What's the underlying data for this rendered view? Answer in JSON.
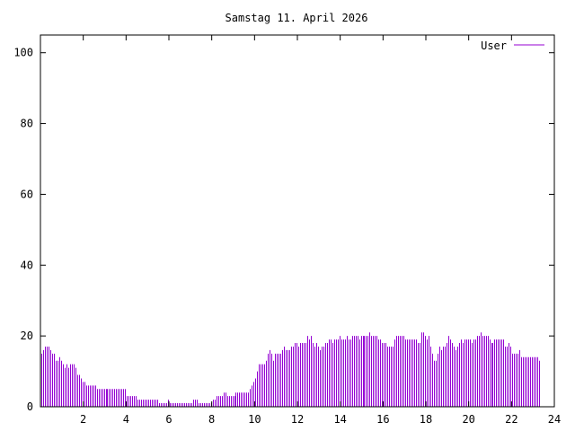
{
  "chart_data": {
    "type": "bar",
    "title": "Samstag 11. April 2026",
    "xlabel": "",
    "ylabel": "",
    "xlim": [
      0,
      24
    ],
    "ylim": [
      0,
      105
    ],
    "grid": false,
    "legend_position": "top-right",
    "x_ticks": [
      2,
      4,
      6,
      8,
      10,
      12,
      14,
      16,
      18,
      20,
      22,
      24
    ],
    "x_tick_labels": [
      "2",
      "4",
      "6",
      "8",
      "10",
      "12",
      "14",
      "16",
      "18",
      "20",
      "22",
      "24"
    ],
    "y_ticks": [
      0,
      20,
      40,
      60,
      80,
      100
    ],
    "y_tick_labels": [
      "0",
      "20",
      "40",
      "60",
      "80",
      "100"
    ],
    "interval_minutes": 5,
    "series": [
      {
        "name": "User",
        "color": "#9400d3",
        "values": [
          15,
          16,
          17,
          17,
          17,
          16,
          15,
          15,
          13,
          13,
          14,
          13,
          12,
          11,
          12,
          11,
          12,
          12,
          12,
          11,
          9,
          9,
          8,
          7,
          7,
          6,
          6,
          6,
          6,
          6,
          6,
          5,
          5,
          5,
          5,
          5,
          5,
          5,
          5,
          5,
          5,
          5,
          5,
          5,
          5,
          5,
          5,
          5,
          3,
          3,
          3,
          3,
          3,
          3,
          2,
          2,
          2,
          2,
          2,
          2,
          2,
          2,
          2,
          2,
          2,
          2,
          1,
          1,
          1,
          1,
          1,
          2,
          1,
          1,
          1,
          1,
          1,
          1,
          1,
          1,
          1,
          1,
          1,
          1,
          1,
          2,
          2,
          2,
          1,
          1,
          1,
          1,
          1,
          1,
          1,
          1,
          2,
          2,
          3,
          3,
          3,
          3,
          4,
          4,
          3,
          3,
          3,
          3,
          3,
          4,
          4,
          4,
          4,
          4,
          4,
          4,
          4,
          5,
          6,
          7,
          8,
          10,
          12,
          12,
          12,
          12,
          13,
          15,
          16,
          15,
          13,
          15,
          15,
          15,
          15,
          16,
          17,
          16,
          16,
          16,
          17,
          17,
          18,
          18,
          17,
          18,
          18,
          18,
          18,
          20,
          19,
          20,
          18,
          17,
          18,
          17,
          16,
          17,
          17,
          18,
          18,
          19,
          19,
          18,
          19,
          19,
          19,
          20,
          19,
          19,
          19,
          20,
          19,
          19,
          20,
          20,
          20,
          20,
          19,
          20,
          20,
          20,
          20,
          20,
          21,
          20,
          20,
          20,
          20,
          19,
          19,
          18,
          18,
          18,
          17,
          17,
          17,
          17,
          19,
          20,
          20,
          20,
          20,
          20,
          19,
          19,
          19,
          19,
          19,
          19,
          19,
          18,
          18,
          21,
          21,
          20,
          19,
          20,
          17,
          15,
          13,
          13,
          15,
          17,
          16,
          17,
          17,
          18,
          20,
          19,
          18,
          17,
          16,
          17,
          18,
          19,
          18,
          19,
          19,
          19,
          19,
          18,
          19,
          19,
          20,
          20,
          21,
          20,
          20,
          20,
          20,
          19,
          18,
          18,
          19,
          19,
          19,
          19,
          19,
          19,
          17,
          17,
          18,
          17,
          15,
          15,
          15,
          15,
          16,
          14,
          14,
          14,
          14,
          14,
          14,
          14,
          14,
          14,
          14,
          13
        ]
      }
    ]
  }
}
